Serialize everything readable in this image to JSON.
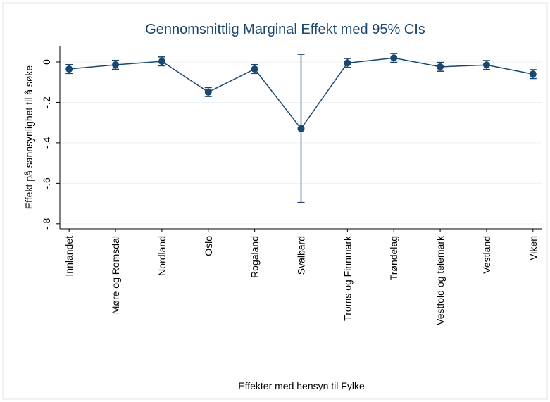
{
  "chart_data": {
    "type": "line",
    "title": "Gennomsnittlig Marginal Effekt med 95% CIs",
    "x_label": "Effekter med hensyn til Fylke",
    "y_label": "Effekt på sannsynlighet til å søke",
    "categories": [
      "Innlandet",
      "Møre og Romsdal",
      "Nordland",
      "Oslo",
      "Rogaland",
      "Svalbard",
      "Troms og Finnmark",
      "Trøndelag",
      "Vestfold og telemark",
      "Vestland",
      "Viken"
    ],
    "values": [
      -0.035,
      -0.014,
      0.003,
      -0.149,
      -0.035,
      -0.33,
      -0.005,
      0.02,
      -0.024,
      -0.015,
      -0.06
    ],
    "ci_lower": [
      -0.057,
      -0.036,
      -0.019,
      -0.171,
      -0.057,
      -0.695,
      -0.027,
      -0.002,
      -0.046,
      -0.037,
      -0.082
    ],
    "ci_upper": [
      -0.013,
      0.008,
      0.025,
      -0.127,
      -0.013,
      0.038,
      0.017,
      0.042,
      -0.002,
      0.007,
      -0.038
    ],
    "color": "#1a476f",
    "ylim": [
      -0.825,
      0.08
    ],
    "yticks": [
      {
        "value": -0.8,
        "label": "-.8"
      },
      {
        "value": -0.6,
        "label": "-.6"
      },
      {
        "value": -0.4,
        "label": "-.4"
      },
      {
        "value": -0.2,
        "label": "-.2"
      },
      0
    ],
    "grid": true
  }
}
